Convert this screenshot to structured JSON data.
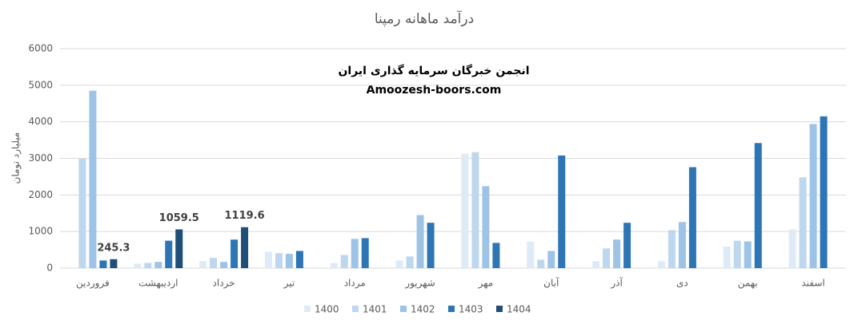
{
  "chart_data": {
    "type": "bar",
    "title": "درآمد ماهانه رمپنا",
    "y_label": "میلیارد تومان",
    "annotations": [
      "انجمن خبرگان سرمایه گذاری ایران",
      "Amoozesh-boors.com"
    ],
    "categories": [
      "فروردین",
      "اردیبهشت",
      "خرداد",
      "تیر",
      "مرداد",
      "شهریور",
      "مهر",
      "آبان",
      "آذر",
      "دی",
      "بهمن",
      "اسفند"
    ],
    "series": [
      {
        "name": "1400",
        "color": "#deebf7",
        "values": [
          null,
          120,
          190,
          450,
          140,
          210,
          3130,
          720,
          190,
          190,
          590,
          1060
        ]
      },
      {
        "name": "1401",
        "color": "#bdd7ee",
        "values": [
          2990,
          140,
          280,
          410,
          360,
          320,
          3170,
          230,
          540,
          1040,
          750,
          2480
        ]
      },
      {
        "name": "1402",
        "color": "#9dc3e6",
        "values": [
          4850,
          170,
          170,
          390,
          800,
          1450,
          2240,
          470,
          780,
          1260,
          730,
          3940
        ]
      },
      {
        "name": "1403",
        "color": "#2e75b6",
        "values": [
          210,
          750,
          780,
          470,
          820,
          1240,
          690,
          3080,
          1240,
          2760,
          3420,
          4150
        ]
      },
      {
        "name": "1404",
        "color": "#1f4e79",
        "values": [
          245.3,
          1059.5,
          1119.6,
          null,
          null,
          null,
          null,
          null,
          null,
          null,
          null,
          null
        ],
        "data_labels": true
      }
    ],
    "ylim": [
      0,
      6000
    ],
    "yticks": [
      0,
      1000,
      2000,
      3000,
      4000,
      5000,
      6000
    ],
    "grid": true,
    "legend": "bottom"
  }
}
